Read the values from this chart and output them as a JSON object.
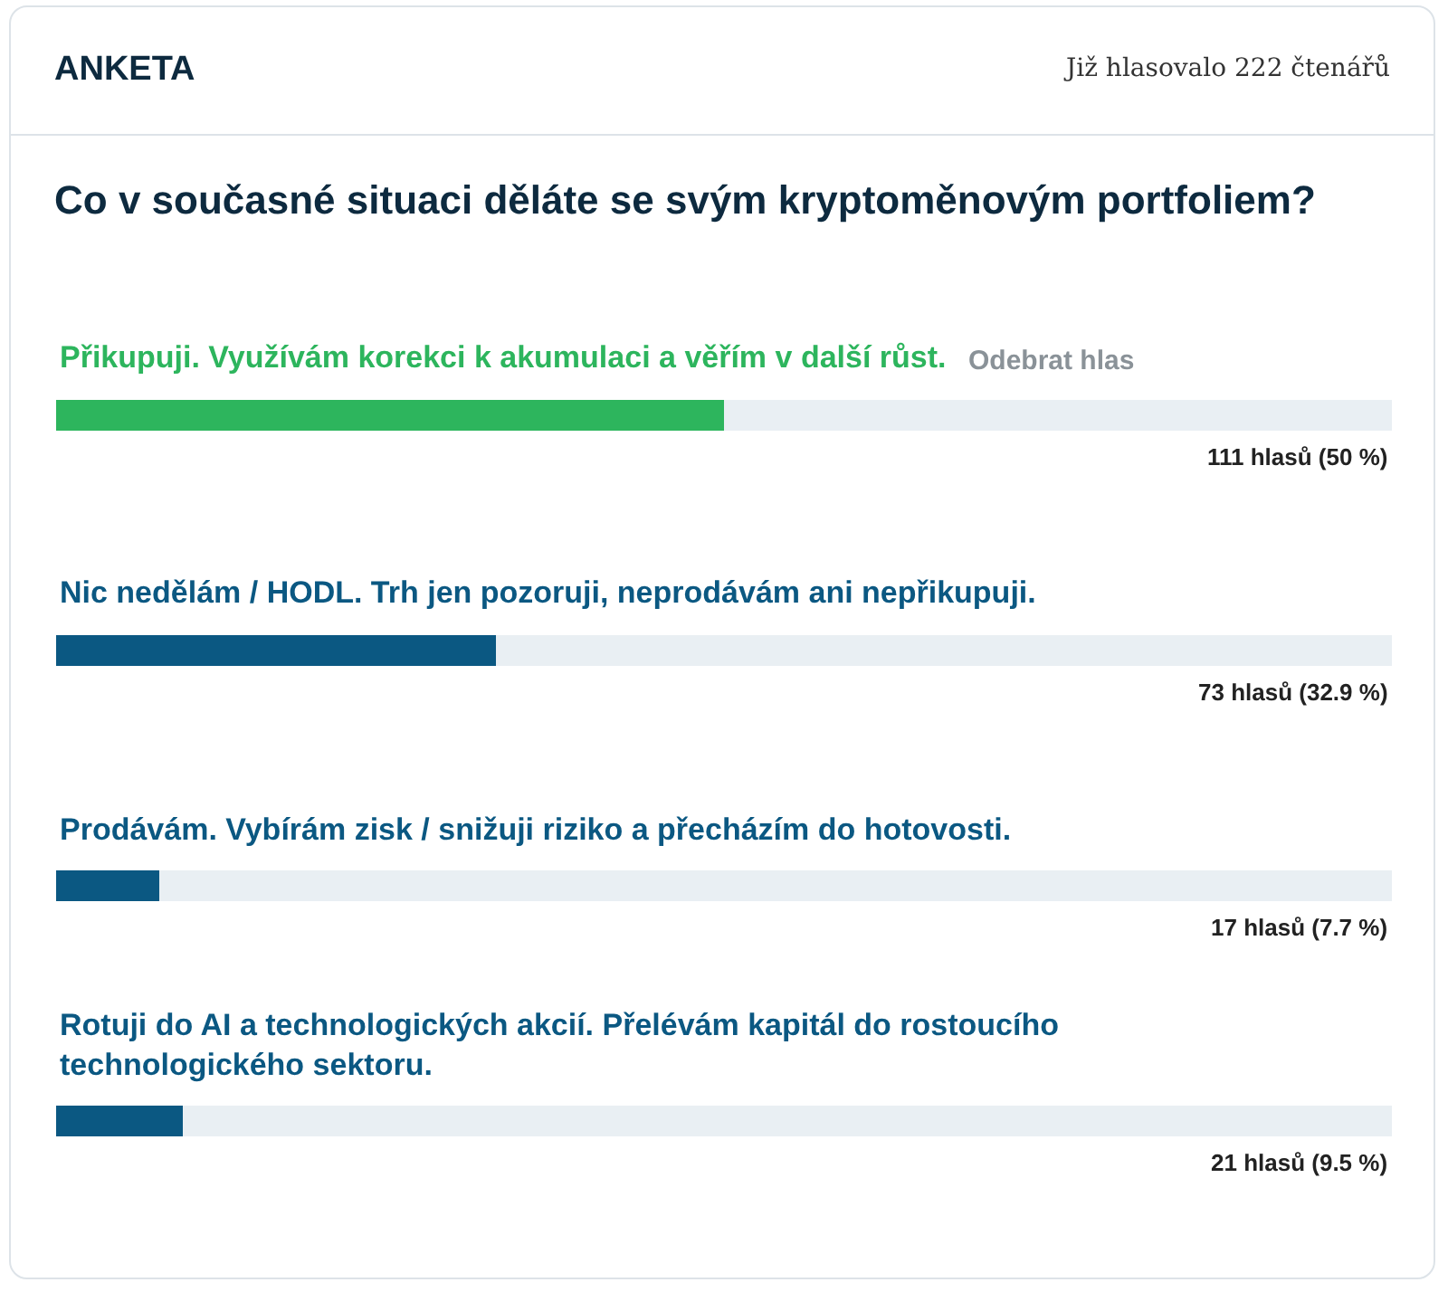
{
  "chart_data": {
    "type": "bar",
    "orientation": "horizontal",
    "title": "ANKETA",
    "subtitle": "Co v současné situaci děláte se svým kryptoměnovým portfoliem?",
    "annotations": [
      "Již hlasovalo 222 čtenářů",
      "Odebrat hlas"
    ],
    "categories": [
      "Přikupuji. Využívám korekci k akumulaci a věřím v další růst.",
      "Nic nedělám / HODL. Trh jen pozoruji, neprodávám ani nepřikupuji.",
      "Prodávám. Vybírám zisk / snižuji riziko a přecházím do hotovosti.",
      "Rotuji do AI a technologických akcií. Přelévám kapitál do rostoucího technologického sektoru."
    ],
    "values": [
      50,
      32.9,
      7.7,
      9.5
    ],
    "value_labels": [
      "111 hlasů (50 %)",
      "73 hlasů (32.9 %)",
      "17 hlasů (7.7 %)",
      "21 hlasů (9.5 %)"
    ],
    "colors": [
      "#2db55d",
      "#0b5882",
      "#0b5882",
      "#0b5882"
    ],
    "xlim": [
      0,
      100
    ],
    "tick_labels": false,
    "grid": false,
    "legend": false
  }
}
